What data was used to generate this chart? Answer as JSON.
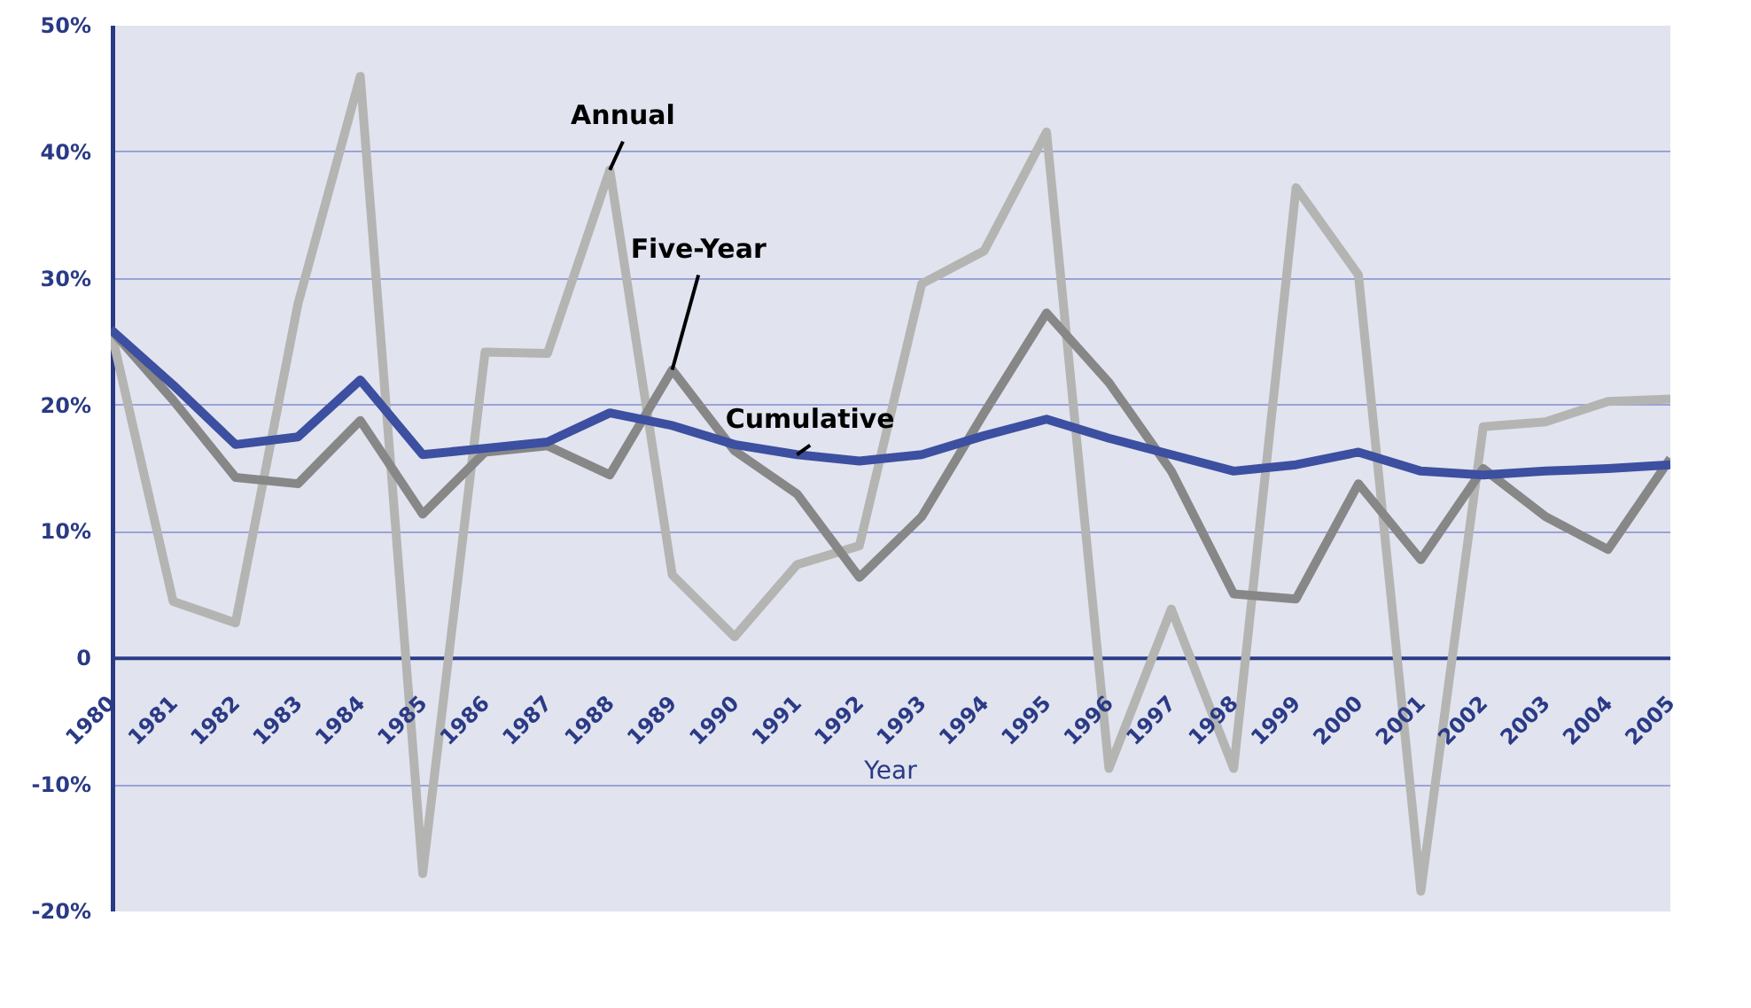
{
  "chart_data": {
    "type": "line",
    "xlabel": "Year",
    "x": [
      1980,
      1981,
      1982,
      1983,
      1984,
      1985,
      1986,
      1987,
      1988,
      1989,
      1990,
      1991,
      1992,
      1993,
      1994,
      1995,
      1996,
      1997,
      1998,
      1999,
      2000,
      2001,
      2002,
      2003,
      2004,
      2005
    ],
    "series": [
      {
        "name": "Annual",
        "color": "#b4b4b2",
        "values": [
          26,
          4.5,
          2.8,
          28,
          46,
          -17,
          24.2,
          24.1,
          38.6,
          6.6,
          1.7,
          7.4,
          8.9,
          29.6,
          32.2,
          41.6,
          -8.7,
          3.9,
          -8.7,
          37.2,
          30.3,
          -18.4,
          18.3,
          18.7,
          20.3,
          20.5
        ]
      },
      {
        "name": "Five-Year",
        "color": "#878787",
        "values": [
          26,
          20.4,
          14.3,
          13.8,
          18.8,
          11.4,
          16.3,
          16.8,
          14.5,
          22.8,
          16.4,
          13.0,
          6.4,
          11.2,
          19.4,
          27.3,
          21.8,
          14.8,
          5.1,
          4.7,
          13.8,
          7.8,
          15.0,
          11.2,
          8.6,
          15.8
        ]
      },
      {
        "name": "Cumulative",
        "color": "#3c4fa0",
        "values": [
          26,
          21.6,
          16.9,
          17.5,
          22.0,
          16.1,
          16.6,
          17.1,
          19.4,
          18.4,
          16.9,
          16.1,
          15.6,
          16.1,
          17.6,
          18.9,
          17.4,
          16.1,
          14.8,
          15.3,
          16.3,
          14.8,
          14.5,
          14.8,
          15.0,
          15.3
        ]
      }
    ],
    "xlim": [
      1980,
      2005
    ],
    "xticks": [
      1980,
      1981,
      1982,
      1983,
      1984,
      1985,
      1986,
      1987,
      1988,
      1989,
      1990,
      1991,
      1992,
      1993,
      1994,
      1995,
      1996,
      1997,
      1998,
      1999,
      2000,
      2001,
      2002,
      2003,
      2004,
      2005
    ],
    "ylim": [
      -20,
      50
    ],
    "yticks": [
      {
        "value": -20,
        "label": "-20%"
      },
      {
        "value": -10,
        "label": "-10%"
      },
      {
        "value": 0,
        "label": "0"
      },
      {
        "value": 10,
        "label": "10%"
      },
      {
        "value": 20,
        "label": "20%"
      },
      {
        "value": 30,
        "label": "30%"
      },
      {
        "value": 40,
        "label": "40%"
      },
      {
        "value": 50,
        "label": "50%"
      }
    ],
    "grid": "y",
    "line_style": "solid",
    "marker": "none"
  }
}
